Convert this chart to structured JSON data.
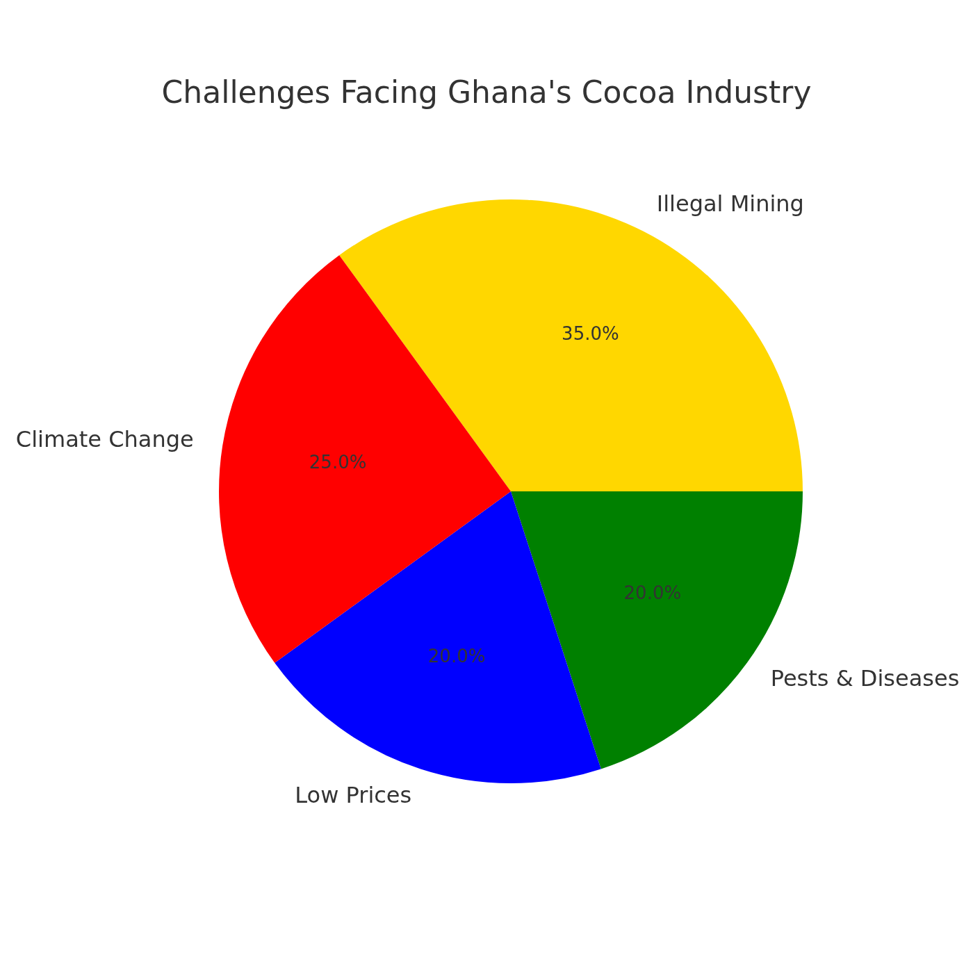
{
  "chart_data": {
    "type": "pie",
    "title": "Challenges Facing Ghana's Cocoa Industry",
    "categories": [
      "Illegal Mining",
      "Pests & Diseases",
      "Low Prices",
      "Climate Change"
    ],
    "values": [
      35,
      20,
      20,
      25
    ],
    "colors": [
      "#ffd700",
      "#008000",
      "#0000ff",
      "#ff0000"
    ],
    "value_labels": [
      "35.0%",
      "20.0%",
      "20.0%",
      "25.0%"
    ]
  }
}
